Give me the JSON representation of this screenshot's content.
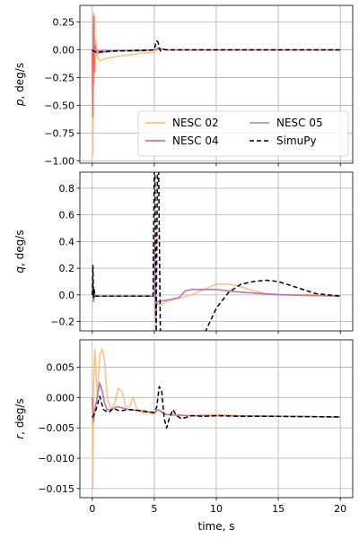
{
  "chart_data": {
    "type": "line",
    "xlabel": "time, s",
    "x_ticks": [
      0,
      5,
      10,
      15,
      20
    ],
    "xlim": [
      -1,
      21
    ],
    "grid": true,
    "legend": {
      "placement": "lower-right of top panel",
      "columns": 2,
      "entries": [
        "NESC 02",
        "NESC 04",
        "NESC 05",
        "SimuPy"
      ]
    },
    "series_styles": [
      {
        "name": "NESC 02",
        "color": "#fdb56c",
        "dash": "solid"
      },
      {
        "name": "NESC 04",
        "color": "#e05a6b",
        "dash": "solid"
      },
      {
        "name": "NESC 05",
        "color": "#b07cc6",
        "dash": "solid"
      },
      {
        "name": "SimuPy",
        "color": "#000000",
        "dash": "dashed"
      }
    ],
    "panels": [
      {
        "ylabel": "p, deg/s",
        "ylim": [
          -1.02,
          0.4
        ],
        "y_ticks": [
          0.25,
          0.0,
          -0.25,
          -0.5,
          -0.75,
          -1.0
        ],
        "y_tick_labels": [
          "0.25",
          "0.00",
          "−0.25",
          "−0.50",
          "−0.75",
          "−1.00"
        ],
        "series": [
          {
            "name": "NESC 02",
            "x": [
              0,
              0.05,
              0.1,
              0.15,
              0.2,
              0.25,
              0.3,
              0.4,
              0.6,
              1,
              2,
              4,
              5,
              5.3,
              6,
              8,
              10,
              12,
              15,
              20
            ],
            "y": [
              0,
              -0.95,
              0.33,
              -0.3,
              0.3,
              -0.2,
              0.1,
              -0.05,
              -0.1,
              -0.08,
              -0.06,
              -0.03,
              -0.02,
              0.02,
              0.0,
              0.0,
              0.0,
              0.0,
              0.0,
              0.0
            ]
          },
          {
            "name": "NESC 04",
            "x": [
              0,
              0.05,
              0.1,
              0.15,
              0.2,
              0.3,
              0.5,
              1,
              2,
              4,
              5,
              5.3,
              6,
              8,
              10,
              15,
              20
            ],
            "y": [
              0,
              -0.6,
              0.3,
              -0.2,
              0.05,
              -0.02,
              -0.03,
              -0.02,
              -0.01,
              -0.01,
              0.0,
              0.01,
              0.0,
              0.0,
              0.0,
              0.0,
              0.0
            ]
          },
          {
            "name": "NESC 05",
            "x": [
              0,
              0.1,
              0.2,
              0.5,
              1,
              2,
              4,
              5,
              5.3,
              6,
              8,
              10,
              15,
              20
            ],
            "y": [
              0,
              -0.01,
              0.0,
              -0.01,
              -0.01,
              -0.01,
              0.0,
              0.0,
              0.01,
              0.0,
              0.0,
              0.0,
              0.0,
              0.0
            ]
          },
          {
            "name": "SimuPy",
            "x": [
              0,
              0.1,
              0.3,
              1,
              2,
              3,
              4,
              5,
              5.1,
              5.2,
              5.3,
              5.4,
              5.5,
              5.7,
              6,
              7,
              8,
              10,
              15,
              20
            ],
            "y": [
              0,
              -0.01,
              -0.02,
              -0.015,
              -0.01,
              -0.008,
              -0.005,
              0.0,
              0.05,
              0.08,
              0.07,
              0.02,
              -0.01,
              0.005,
              0.0,
              0.0,
              0.0,
              0.0,
              0.0,
              0.0
            ]
          }
        ]
      },
      {
        "ylabel": "q, deg/s",
        "ylim": [
          -0.27,
          0.92
        ],
        "y_ticks": [
          0.8,
          0.6,
          0.4,
          0.2,
          0.0,
          -0.2
        ],
        "y_tick_labels": [
          "0.8",
          "0.6",
          "0.4",
          "0.2",
          "0.0",
          "−0.2"
        ],
        "series": [
          {
            "name": "NESC 02",
            "x": [
              0,
              0.05,
              0.1,
              0.2,
              0.5,
              1,
              3,
              5,
              5.05,
              5.1,
              5.2,
              5.4,
              6,
              8,
              9,
              10,
              11,
              12,
              13,
              14,
              16,
              18,
              20
            ],
            "y": [
              0,
              0.1,
              -0.05,
              0.0,
              -0.01,
              -0.01,
              -0.01,
              -0.01,
              0.5,
              -0.2,
              -0.05,
              -0.08,
              -0.05,
              0.0,
              0.04,
              0.08,
              0.08,
              0.06,
              0.03,
              0.01,
              0.0,
              0.0,
              -0.01
            ]
          },
          {
            "name": "NESC 04",
            "x": [
              0,
              0.05,
              0.1,
              0.2,
              0.5,
              1,
              3,
              5,
              5.05,
              5.1,
              5.2,
              5.4,
              6,
              7,
              7.5,
              8,
              10,
              12,
              15,
              20
            ],
            "y": [
              0,
              0.1,
              -0.05,
              0.0,
              -0.01,
              -0.01,
              -0.01,
              -0.01,
              0.4,
              -0.15,
              -0.05,
              -0.05,
              -0.04,
              -0.02,
              0.03,
              0.04,
              0.04,
              0.02,
              0.0,
              -0.01
            ]
          },
          {
            "name": "NESC 05",
            "x": [
              0,
              0.05,
              0.1,
              0.2,
              0.5,
              1,
              3,
              5,
              5.05,
              5.1,
              5.2,
              5.4,
              6,
              7,
              7.5,
              8,
              10,
              12,
              15,
              20
            ],
            "y": [
              0,
              0.1,
              -0.05,
              0.0,
              -0.01,
              -0.01,
              -0.01,
              -0.01,
              0.4,
              -0.15,
              -0.05,
              -0.05,
              -0.04,
              -0.02,
              0.03,
              0.04,
              0.04,
              0.02,
              0.0,
              -0.01
            ]
          },
          {
            "name": "SimuPy",
            "x": [
              0,
              0.05,
              0.1,
              0.15,
              0.2,
              0.4,
              1,
              3,
              4.9,
              5.0,
              5.05,
              5.15,
              5.25,
              5.35,
              5.5,
              6,
              8,
              9,
              10,
              11,
              12,
              13,
              14,
              15,
              16,
              17,
              18,
              19,
              20
            ],
            "y": [
              0,
              0.22,
              -0.02,
              0.05,
              -0.01,
              -0.01,
              -0.01,
              -0.01,
              -0.01,
              0.95,
              0.95,
              -0.3,
              0.95,
              0.95,
              -0.35,
              -0.6,
              -0.5,
              -0.3,
              -0.1,
              0.02,
              0.08,
              0.1,
              0.11,
              0.1,
              0.07,
              0.04,
              0.01,
              0.0,
              -0.01
            ]
          }
        ]
      },
      {
        "ylabel": "r, deg/s",
        "ylim": [
          -0.0165,
          0.0095
        ],
        "y_ticks": [
          0.005,
          0.0,
          -0.005,
          -0.01,
          -0.015
        ],
        "y_tick_labels": [
          "0.005",
          "0.000",
          "−0.005",
          "−0.010",
          "−0.015"
        ],
        "series": [
          {
            "name": "NESC 02",
            "x": [
              0,
              0.05,
              0.1,
              0.2,
              0.4,
              0.6,
              0.8,
              1.0,
              1.2,
              1.5,
              1.8,
              2.1,
              2.4,
              2.7,
              3.0,
              3.3,
              3.6,
              4.0,
              4.5,
              5.0,
              5.3,
              5.6,
              6,
              7,
              8,
              10,
              12,
              15,
              20
            ],
            "y": [
              0,
              -0.015,
              0.002,
              0.008,
              0.0,
              0.007,
              0.008,
              0.006,
              0.0,
              -0.002,
              -0.001,
              0.0015,
              0.001,
              -0.0015,
              -0.0015,
              0.0,
              -0.002,
              -0.0025,
              -0.0025,
              -0.0028,
              -0.002,
              -0.0025,
              -0.0028,
              -0.003,
              -0.003,
              -0.0028,
              -0.003,
              -0.0031,
              -0.0032
            ]
          },
          {
            "name": "NESC 04",
            "x": [
              0,
              0.1,
              0.2,
              0.4,
              0.6,
              0.8,
              1.0,
              1.2,
              1.5,
              2,
              3,
              4,
              5,
              5.3,
              6,
              8,
              10,
              15,
              20
            ],
            "y": [
              0,
              -0.004,
              -0.002,
              0.0,
              0.0022,
              0.001,
              -0.001,
              -0.002,
              -0.002,
              -0.0015,
              -0.002,
              -0.0022,
              -0.0025,
              -0.002,
              -0.0028,
              -0.003,
              -0.003,
              -0.0031,
              -0.0032
            ]
          },
          {
            "name": "NESC 05",
            "x": [
              0,
              0.1,
              0.2,
              0.4,
              0.6,
              0.8,
              1.0,
              1.2,
              1.5,
              2,
              3,
              4,
              5,
              5.3,
              6,
              8,
              10,
              15,
              20
            ],
            "y": [
              0,
              -0.004,
              -0.002,
              0.0,
              0.0025,
              0.0012,
              -0.001,
              -0.002,
              -0.002,
              -0.0015,
              -0.002,
              -0.0022,
              -0.0025,
              -0.002,
              -0.0028,
              -0.003,
              -0.003,
              -0.0031,
              -0.0032
            ]
          },
          {
            "name": "SimuPy",
            "x": [
              0,
              0.1,
              0.3,
              0.6,
              0.9,
              1.3,
              1.7,
              2.2,
              3,
              4,
              5,
              5.2,
              5.4,
              5.6,
              5.8,
              6.0,
              6.2,
              6.5,
              6.8,
              7.2,
              8,
              9,
              10,
              12,
              15,
              20
            ],
            "y": [
              -0.0033,
              -0.003,
              -0.002,
              0.0002,
              -0.002,
              -0.0025,
              -0.0018,
              -0.0022,
              -0.002,
              -0.0022,
              -0.0025,
              -0.0015,
              0.0018,
              0.001,
              -0.0035,
              -0.005,
              -0.0035,
              -0.002,
              -0.003,
              -0.0035,
              -0.003,
              -0.0031,
              -0.003,
              -0.0031,
              -0.0031,
              -0.0032
            ]
          }
        ]
      }
    ]
  }
}
